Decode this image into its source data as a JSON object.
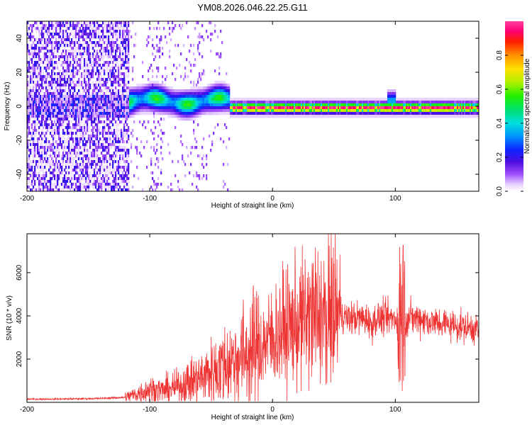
{
  "figure": {
    "title": "YM08.2026.046.22.25.G11"
  },
  "chart_data": [
    {
      "type": "heatmap",
      "title": "YM08.2026.046.22.25.G11",
      "xlabel": "Height of straight line (km)",
      "ylabel": "Frequency (Hz)",
      "xlim": [
        -200,
        168
      ],
      "ylim": [
        -50,
        50
      ],
      "xticks": [
        -200,
        -100,
        0,
        100
      ],
      "yticks": [
        -40,
        -20,
        0,
        20,
        40
      ],
      "colorbar": {
        "label": "Normalized spectral amplitude",
        "range": [
          0,
          1
        ],
        "ticks": [
          0.0,
          0.2,
          0.4,
          0.6,
          0.8
        ],
        "tick_labels": [
          "0.0",
          "0.2",
          "0.4",
          "0.6",
          "0.8"
        ]
      },
      "regions": [
        {
          "x": [
            -200,
            -117
          ],
          "description": "broadband noise, amplitude ~0.1-0.2"
        },
        {
          "x": [
            -117,
            -35
          ],
          "center_freq_hz": 3,
          "peak_amplitude": 0.45
        },
        {
          "x": [
            -35,
            168
          ],
          "center_freq_hz": -1,
          "peak_amplitude": 1.0
        }
      ]
    },
    {
      "type": "line",
      "xlabel": "Height of straight line (km)",
      "ylabel": "SNR (10 * v/v)",
      "xlim": [
        -200,
        168
      ],
      "ylim": [
        0,
        7800
      ],
      "xticks": [
        -200,
        -100,
        0,
        100
      ],
      "yticks": [
        2000,
        4000,
        6000
      ],
      "color": "#ee3333",
      "series": [
        {
          "x": [
            -200,
            -180,
            -160,
            -140,
            -120,
            -110,
            -100,
            -90,
            -80,
            -70,
            -60,
            -50,
            -40,
            -30,
            -20,
            -10,
            0,
            10,
            20,
            30,
            40,
            50,
            60,
            70,
            80,
            90,
            100,
            110,
            120,
            130,
            140,
            150,
            160,
            168
          ],
          "values": [
            150,
            150,
            160,
            180,
            230,
            400,
            600,
            550,
            650,
            900,
            1100,
            1400,
            1700,
            2000,
            2300,
            2600,
            3000,
            3400,
            3600,
            4000,
            4100,
            4400,
            3900,
            3900,
            3800,
            3900,
            3900,
            3900,
            3900,
            3700,
            3650,
            3550,
            3450,
            3400
          ]
        }
      ]
    }
  ]
}
